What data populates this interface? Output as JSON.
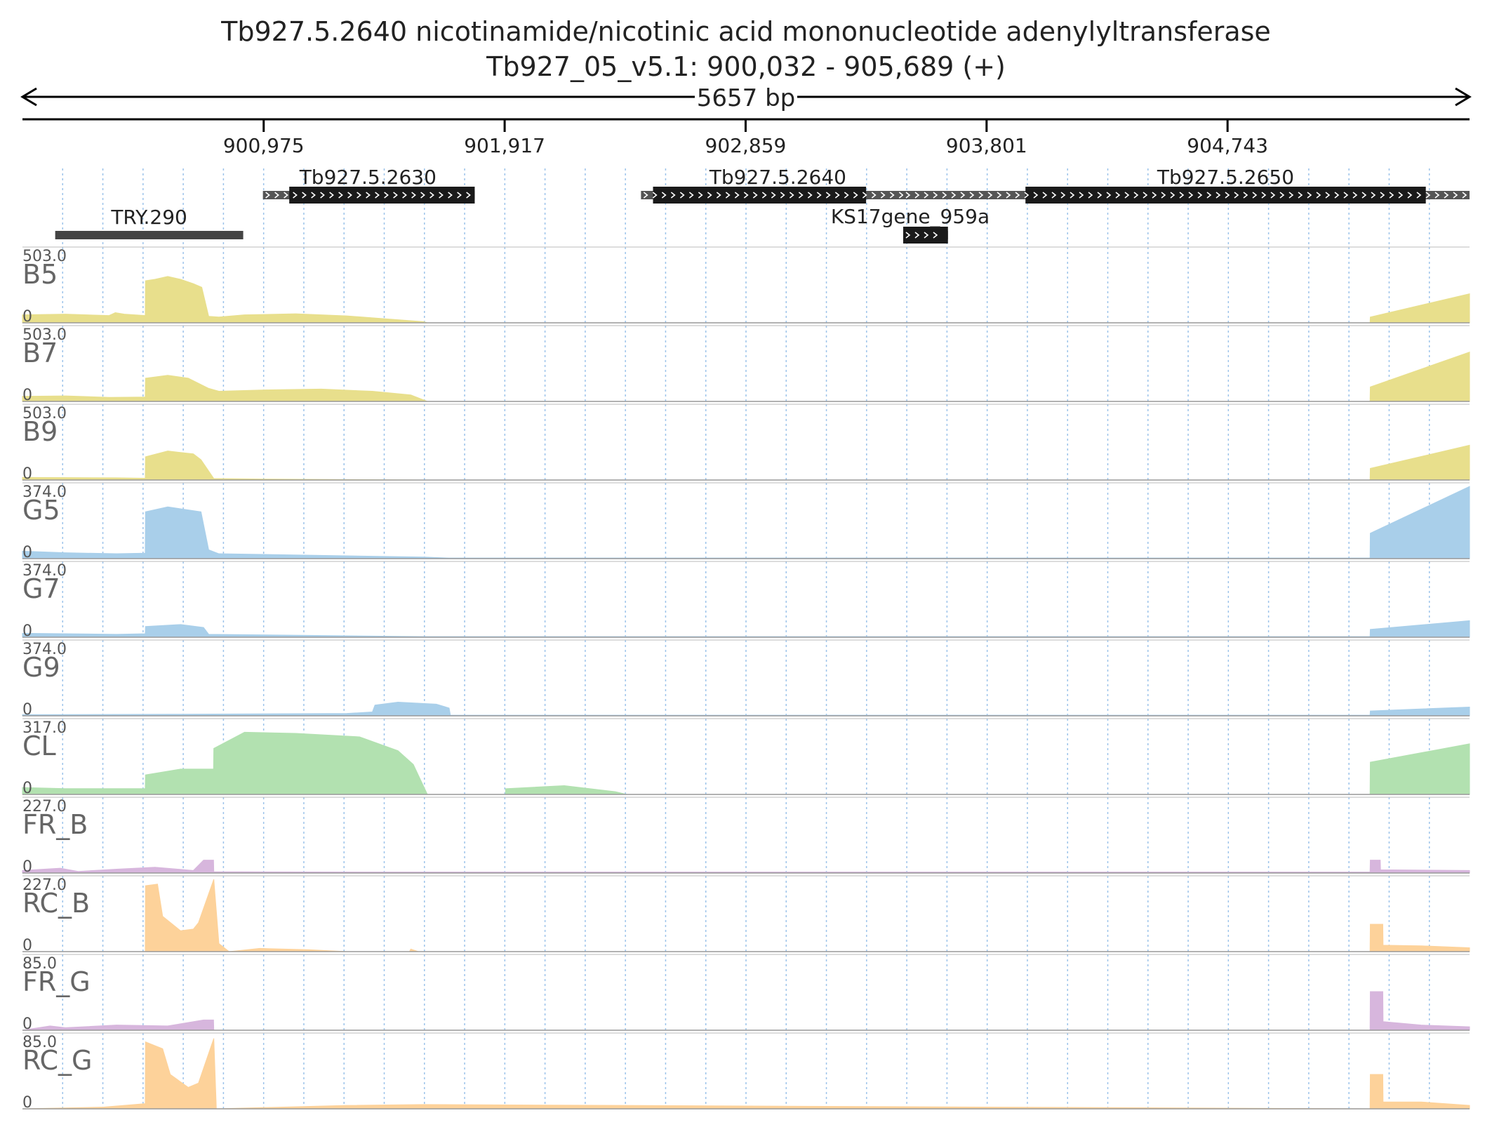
{
  "header": {
    "title": "Tb927.5.2640  nicotinamide/nicotinic acid mononucleotide adenylyltransferase",
    "locus": "Tb927_05_v5.1: 900,032 - 905,689 (+)",
    "span_label": "5657 bp"
  },
  "region": {
    "start": 900032,
    "end": 905689
  },
  "ruler": {
    "ticks": [
      {
        "pos": 900975,
        "label": "900,975"
      },
      {
        "pos": 901917,
        "label": "901,917"
      },
      {
        "pos": 902859,
        "label": "902,859"
      },
      {
        "pos": 903801,
        "label": "903,801"
      },
      {
        "pos": 904743,
        "label": "904,743"
      }
    ]
  },
  "genes": [
    {
      "name": "Tb927.5.2630",
      "start": 900972,
      "end": 901800,
      "cds": [
        901075,
        901800
      ],
      "row": 0,
      "color": "#000000"
    },
    {
      "name": "Tb927.5.2640",
      "start": 902450,
      "end": 903520,
      "cds": [
        902497,
        903330
      ],
      "row": 0,
      "color": "#000000"
    },
    {
      "name": "Tb927.5.2650",
      "start": 903475,
      "end": 905689,
      "cds": [
        903953,
        905518
      ],
      "row": 0,
      "color": "#000000"
    },
    {
      "name": "KS17gene_959a",
      "start": 903475,
      "end": 903650,
      "cds": [
        903475,
        903650
      ],
      "row": 1,
      "color": "#000000"
    },
    {
      "name": "TRY.290",
      "start": 900160,
      "end": 900895,
      "cds": null,
      "row": 1,
      "color": "#444444"
    }
  ],
  "tracks": [
    {
      "name": "B5",
      "max": "503.0",
      "min": "0",
      "color": "#e8df8c",
      "profile": [
        [
          900032,
          55
        ],
        [
          900200,
          60
        ],
        [
          900370,
          50
        ],
        [
          900395,
          70
        ],
        [
          900430,
          60
        ],
        [
          900512,
          50
        ],
        [
          900513,
          290
        ],
        [
          900550,
          300
        ],
        [
          900600,
          320
        ],
        [
          900650,
          300
        ],
        [
          900700,
          270
        ],
        [
          900733,
          245
        ],
        [
          900760,
          45
        ],
        [
          900800,
          40
        ],
        [
          900900,
          55
        ],
        [
          901100,
          62
        ],
        [
          901300,
          48
        ],
        [
          901450,
          28
        ],
        [
          901600,
          8
        ],
        [
          901615,
          0
        ],
        [
          905300,
          0
        ],
        [
          905301,
          40
        ],
        [
          905689,
          200
        ]
      ]
    },
    {
      "name": "B7",
      "max": "503.0",
      "min": "0",
      "color": "#e8df8c",
      "profile": [
        [
          900032,
          35
        ],
        [
          900200,
          38
        ],
        [
          900370,
          28
        ],
        [
          900512,
          30
        ],
        [
          900513,
          160
        ],
        [
          900600,
          180
        ],
        [
          900680,
          160
        ],
        [
          900760,
          90
        ],
        [
          900800,
          70
        ],
        [
          901000,
          80
        ],
        [
          901200,
          85
        ],
        [
          901400,
          70
        ],
        [
          901550,
          45
        ],
        [
          901615,
          0
        ],
        [
          905300,
          0
        ],
        [
          905301,
          100
        ],
        [
          905689,
          340
        ]
      ]
    },
    {
      "name": "B9",
      "max": "503.0",
      "min": "0",
      "color": "#e8df8c",
      "profile": [
        [
          900032,
          18
        ],
        [
          900400,
          15
        ],
        [
          900512,
          12
        ],
        [
          900513,
          160
        ],
        [
          900600,
          200
        ],
        [
          900700,
          180
        ],
        [
          900730,
          140
        ],
        [
          900780,
          10
        ],
        [
          901000,
          6
        ],
        [
          901600,
          0
        ],
        [
          905300,
          0
        ],
        [
          905301,
          80
        ],
        [
          905689,
          240
        ]
      ]
    },
    {
      "name": "G5",
      "max": "374.0",
      "min": "0",
      "color": "#a9cfea",
      "profile": [
        [
          900032,
          38
        ],
        [
          900200,
          30
        ],
        [
          900400,
          25
        ],
        [
          900512,
          28
        ],
        [
          900513,
          240
        ],
        [
          900600,
          265
        ],
        [
          900730,
          240
        ],
        [
          900760,
          45
        ],
        [
          900800,
          25
        ],
        [
          901600,
          8
        ],
        [
          901700,
          3
        ],
        [
          905300,
          3
        ],
        [
          905301,
          130
        ],
        [
          905689,
          370
        ]
      ]
    },
    {
      "name": "G7",
      "max": "374.0",
      "min": "0",
      "color": "#a9cfea",
      "profile": [
        [
          900032,
          20
        ],
        [
          900400,
          15
        ],
        [
          900512,
          18
        ],
        [
          900513,
          55
        ],
        [
          900650,
          65
        ],
        [
          900740,
          50
        ],
        [
          900760,
          15
        ],
        [
          901600,
          3
        ],
        [
          905300,
          3
        ],
        [
          905301,
          40
        ],
        [
          905689,
          85
        ]
      ]
    },
    {
      "name": "G9",
      "max": "374.0",
      "min": "0",
      "color": "#a9cfea",
      "profile": [
        [
          900032,
          6
        ],
        [
          900600,
          8
        ],
        [
          901300,
          12
        ],
        [
          901400,
          20
        ],
        [
          901410,
          55
        ],
        [
          901500,
          70
        ],
        [
          901650,
          60
        ],
        [
          901700,
          40
        ],
        [
          901705,
          3
        ],
        [
          905300,
          3
        ],
        [
          905301,
          25
        ],
        [
          905689,
          45
        ]
      ]
    },
    {
      "name": "CL",
      "max": "317.0",
      "min": "0",
      "color": "#b2e1b0",
      "profile": [
        [
          900032,
          30
        ],
        [
          900200,
          25
        ],
        [
          900512,
          25
        ],
        [
          900513,
          85
        ],
        [
          900650,
          110
        ],
        [
          900779,
          110
        ],
        [
          900780,
          200
        ],
        [
          900900,
          270
        ],
        [
          901100,
          265
        ],
        [
          901350,
          250
        ],
        [
          901500,
          190
        ],
        [
          901560,
          130
        ],
        [
          901615,
          0
        ],
        [
          901920,
          0
        ],
        [
          901921,
          25
        ],
        [
          902150,
          38
        ],
        [
          902350,
          12
        ],
        [
          902395,
          0
        ],
        [
          905300,
          0
        ],
        [
          905301,
          140
        ],
        [
          905689,
          220
        ]
      ]
    },
    {
      "name": "FR_B",
      "max": "227.0",
      "min": "0",
      "color": "#d7b6dd",
      "profile": [
        [
          900032,
          8
        ],
        [
          900180,
          15
        ],
        [
          900250,
          5
        ],
        [
          900400,
          12
        ],
        [
          900550,
          18
        ],
        [
          900700,
          8
        ],
        [
          900740,
          40
        ],
        [
          900779,
          40
        ],
        [
          900780,
          4
        ],
        [
          901400,
          3
        ],
        [
          905300,
          3
        ],
        [
          905301,
          40
        ],
        [
          905340,
          40
        ],
        [
          905341,
          10
        ],
        [
          905689,
          8
        ]
      ]
    },
    {
      "name": "RC_B",
      "max": "227.0",
      "min": "0",
      "color": "#fdd29a",
      "profile": [
        [
          900032,
          0
        ],
        [
          900512,
          0
        ],
        [
          900513,
          205
        ],
        [
          900560,
          210
        ],
        [
          900580,
          110
        ],
        [
          900650,
          65
        ],
        [
          900700,
          70
        ],
        [
          900720,
          90
        ],
        [
          900780,
          225
        ],
        [
          900800,
          25
        ],
        [
          900840,
          0
        ],
        [
          900960,
          10
        ],
        [
          901150,
          6
        ],
        [
          901300,
          0
        ],
        [
          901545,
          0
        ],
        [
          901550,
          8
        ],
        [
          901580,
          0
        ],
        [
          905300,
          0
        ],
        [
          905301,
          85
        ],
        [
          905350,
          85
        ],
        [
          905351,
          20
        ],
        [
          905500,
          18
        ],
        [
          905689,
          12
        ]
      ]
    },
    {
      "name": "FR_G",
      "max": "85.0",
      "min": "0",
      "color": "#d7b6dd",
      "profile": [
        [
          900032,
          0
        ],
        [
          900140,
          5
        ],
        [
          900200,
          3
        ],
        [
          900400,
          6
        ],
        [
          900600,
          5
        ],
        [
          900740,
          12
        ],
        [
          900779,
          12
        ],
        [
          900780,
          0
        ],
        [
          905300,
          0
        ],
        [
          905301,
          45
        ],
        [
          905350,
          45
        ],
        [
          905351,
          10
        ],
        [
          905500,
          6
        ],
        [
          905689,
          4
        ]
      ]
    },
    {
      "name": "RC_G",
      "max": "85.0",
      "min": "0",
      "color": "#fdd29a",
      "profile": [
        [
          900032,
          0
        ],
        [
          900350,
          2
        ],
        [
          900512,
          6
        ],
        [
          900513,
          78
        ],
        [
          900580,
          70
        ],
        [
          900610,
          40
        ],
        [
          900680,
          25
        ],
        [
          900720,
          30
        ],
        [
          900780,
          82
        ],
        [
          900790,
          0
        ],
        [
          901300,
          4
        ],
        [
          901600,
          5
        ],
        [
          905300,
          0
        ],
        [
          905301,
          40
        ],
        [
          905350,
          40
        ],
        [
          905351,
          8
        ],
        [
          905500,
          8
        ],
        [
          905689,
          4
        ]
      ]
    }
  ]
}
